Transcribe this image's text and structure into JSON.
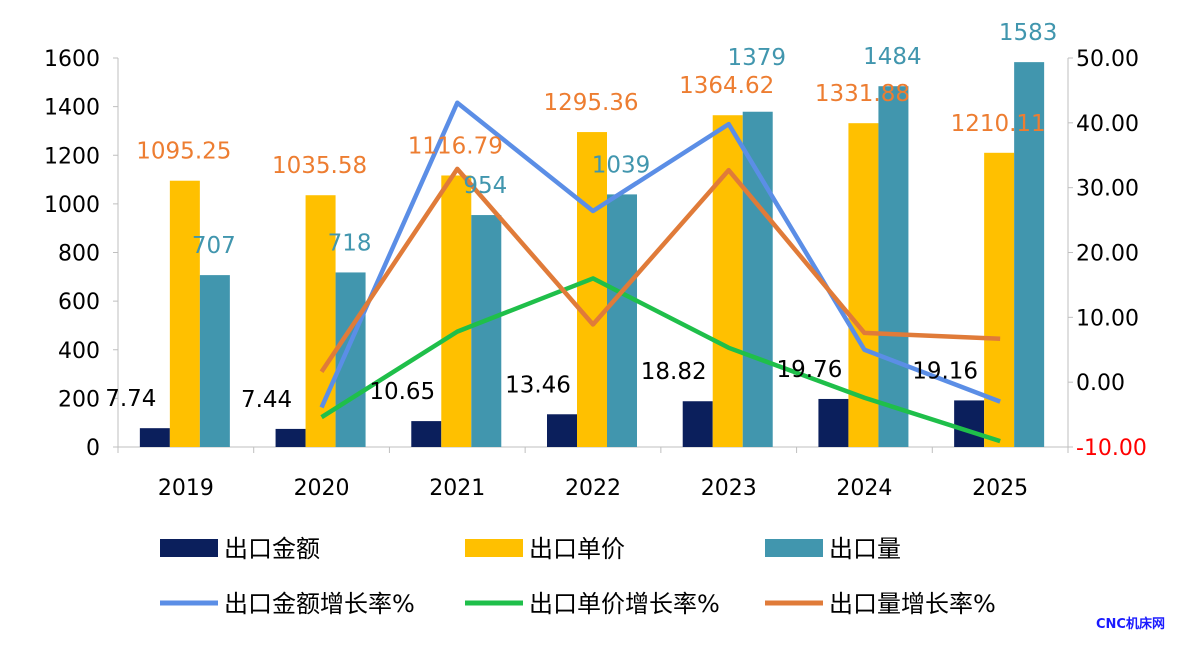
{
  "chart_data": {
    "type": "bar+line",
    "categories": [
      "2019",
      "2020",
      "2021",
      "2022",
      "2023",
      "2024",
      "2025"
    ],
    "left_axis": {
      "range": [
        0,
        1600
      ],
      "ticks": [
        0,
        200,
        400,
        600,
        800,
        1000,
        1200,
        1400,
        1600
      ]
    },
    "right_axis": {
      "range": [
        -10,
        50
      ],
      "ticks": [
        "-10.00",
        "0.00",
        "10.00",
        "20.00",
        "30.00",
        "40.00",
        "50.00"
      ],
      "negative_tick_color": "#ff0000"
    },
    "bar_series": [
      {
        "name": "出口金额",
        "color": "#0b1f5c",
        "label_color": "#000000",
        "values": [
          7.74,
          7.44,
          10.65,
          13.46,
          18.82,
          19.76,
          19.16
        ],
        "labels": [
          "7.74",
          "7.44",
          "10.65",
          "13.46",
          "18.82",
          "19.76",
          "19.16"
        ],
        "plot_scale": 10
      },
      {
        "name": "出口单价",
        "color": "#ffc000",
        "label_color": "#ed7d31",
        "values": [
          1095.25,
          1035.58,
          1116.79,
          1295.36,
          1364.62,
          1331.88,
          1210.11
        ],
        "labels": [
          "1095.25",
          "1035.58",
          "1116.79",
          "1295.36",
          "1364.62",
          "1331.88",
          "1210.11"
        ]
      },
      {
        "name": "出口量",
        "color": "#4196ae",
        "label_color": "#4196ae",
        "values": [
          707,
          718,
          954,
          1039,
          1379,
          1484,
          1583
        ],
        "labels": [
          "707",
          "718",
          "954",
          "1039",
          "1379",
          "1484",
          "1583"
        ]
      }
    ],
    "line_series": [
      {
        "name": "出口金额增长率%",
        "color": "#5b8ee6",
        "values": [
          null,
          -3.9,
          43.1,
          26.4,
          39.8,
          5.0,
          -3.0
        ]
      },
      {
        "name": "出口单价增长率%",
        "color": "#1fbf4a",
        "values": [
          null,
          -5.4,
          7.8,
          16.0,
          5.3,
          -2.4,
          -9.1
        ]
      },
      {
        "name": "出口量增长率%",
        "color": "#e07b39",
        "values": [
          null,
          1.6,
          32.9,
          8.9,
          32.7,
          7.6,
          6.7
        ]
      }
    ],
    "grid": false,
    "legend_placement": "bottom"
  },
  "watermark": "CNC机床网"
}
